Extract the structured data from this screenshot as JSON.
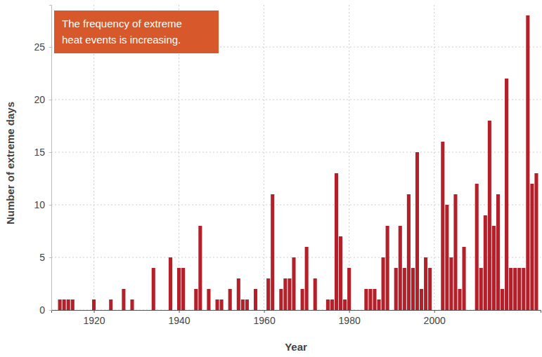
{
  "chart_data": {
    "type": "bar",
    "annotation": [
      "The frequency of extreme",
      "heat events is increasing."
    ],
    "x_label": "Year",
    "y_label": "Number of extreme days",
    "x": [
      1912,
      1913,
      1914,
      1915,
      1920,
      1924,
      1927,
      1929,
      1934,
      1938,
      1940,
      1941,
      1944,
      1945,
      1947,
      1949,
      1950,
      1952,
      1954,
      1955,
      1956,
      1958,
      1961,
      1962,
      1964,
      1965,
      1966,
      1967,
      1969,
      1970,
      1972,
      1975,
      1976,
      1977,
      1978,
      1979,
      1980,
      1984,
      1985,
      1986,
      1987,
      1988,
      1989,
      1991,
      1992,
      1993,
      1994,
      1995,
      1996,
      1997,
      1998,
      1999,
      2002,
      2003,
      2004,
      2005,
      2006,
      2007,
      2010,
      2011,
      2012,
      2013,
      2014,
      2015,
      2016,
      2017,
      2018,
      2019,
      2020,
      2021,
      2022,
      2023,
      2024
    ],
    "values": [
      1,
      1,
      1,
      1,
      1,
      1,
      2,
      1,
      4,
      5,
      4,
      4,
      2,
      8,
      2,
      1,
      1,
      2,
      3,
      1,
      1,
      2,
      3,
      11,
      2,
      3,
      3,
      5,
      2,
      6,
      3,
      1,
      1,
      13,
      7,
      1,
      4,
      2,
      2,
      2,
      1,
      5,
      8,
      4,
      8,
      4,
      11,
      4,
      15,
      2,
      5,
      4,
      16,
      10,
      5,
      11,
      2,
      6,
      12,
      4,
      9,
      18,
      8,
      11,
      2,
      22,
      4,
      4,
      4,
      4,
      28,
      12,
      13
    ],
    "color": "#b3202a",
    "xlim": [
      1910,
      2025
    ],
    "xticks": [
      1920,
      1940,
      1960,
      1980,
      2000
    ],
    "ylim": [
      0,
      29
    ],
    "yticks": [
      0,
      5,
      10,
      15,
      20,
      25
    ],
    "grid": true
  }
}
